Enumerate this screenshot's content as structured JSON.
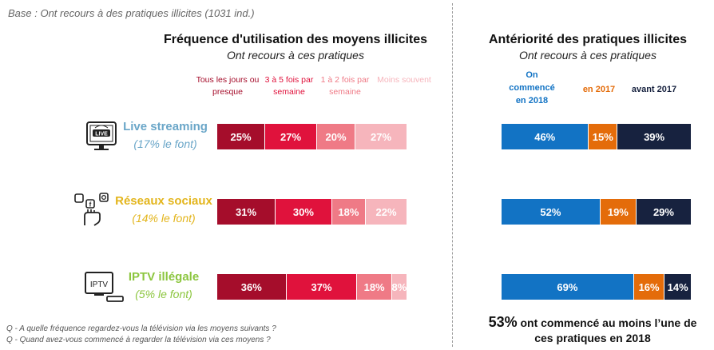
{
  "base_note": "Base : Ont recours à des pratiques illicites (1031 ind.)",
  "left_panel": {
    "title": "Fréquence d'utilisation des moyens illicites",
    "subtitle": "Ont recours à ces pratiques",
    "legend": [
      "Tous les jours ou presque",
      "3 à 5 fois par semaine",
      "1 à 2 fois par semaine",
      "Moins souvent"
    ]
  },
  "right_panel": {
    "title": "Antériorité des pratiques illicites",
    "subtitle": "Ont recours à ces pratiques",
    "legend": [
      "On commencé en 2018",
      "en 2017",
      "avant 2017"
    ]
  },
  "categories": [
    {
      "name": "Live streaming",
      "share": "(17% le font)",
      "icon": "live-tv-icon",
      "color": "#6aa6c8"
    },
    {
      "name": "Réseaux sociaux",
      "share": "(14% le font)",
      "icon": "social-media-hand-icon",
      "color": "#e3b51c"
    },
    {
      "name": "IPTV illégale",
      "share": "(5% le font)",
      "icon": "iptv-box-icon",
      "color": "#8cc63f",
      "icon_text": "IPTV"
    }
  ],
  "chart_data": [
    {
      "type": "bar",
      "orientation": "horizontal-stacked-100",
      "title": "Fréquence d'utilisation des moyens illicites",
      "subtitle": "Ont recours à ces pratiques",
      "categories": [
        "Live streaming",
        "Réseaux sociaux",
        "IPTV illégale"
      ],
      "series": [
        {
          "name": "Tous les jours ou presque",
          "values": [
            25,
            31,
            36
          ],
          "labels": [
            "25%",
            "31%",
            "36%"
          ],
          "color": "#a50d2b"
        },
        {
          "name": "3 à 5 fois par semaine",
          "values": [
            27,
            30,
            37
          ],
          "labels": [
            "27%",
            "30%",
            "37%"
          ],
          "color": "#e0123c"
        },
        {
          "name": "1 à 2 fois par semaine",
          "values": [
            20,
            18,
            18
          ],
          "labels": [
            "20%",
            "18%",
            "18%"
          ],
          "color": "#ef7a86"
        },
        {
          "name": "Moins souvent",
          "values": [
            27,
            22,
            8
          ],
          "labels": [
            "27%",
            "22%",
            "8%"
          ],
          "color": "#f6b5bc"
        }
      ]
    },
    {
      "type": "bar",
      "orientation": "horizontal-stacked-100",
      "title": "Antériorité des pratiques illicites",
      "subtitle": "Ont recours à ces pratiques",
      "categories": [
        "Live streaming",
        "Réseaux sociaux",
        "IPTV illégale"
      ],
      "series": [
        {
          "name": "On commencé en 2018",
          "values": [
            46,
            52,
            69
          ],
          "labels": [
            "46%",
            "52%",
            "69%"
          ],
          "color": "#1273c4"
        },
        {
          "name": "en 2017",
          "values": [
            15,
            19,
            16
          ],
          "labels": [
            "15%",
            "19%",
            "16%"
          ],
          "color": "#e46c0a"
        },
        {
          "name": "avant 2017",
          "values": [
            39,
            29,
            14
          ],
          "labels": [
            "39%",
            "29%",
            "14%"
          ],
          "color": "#17223f"
        }
      ]
    }
  ],
  "summary": {
    "value": "53%",
    "text": "ont commencé au moins l’une de ces pratiques en 2018"
  },
  "questions": [
    "Q - A quelle fréquence regardez-vous la télévision via les moyens suivants ?",
    "Q - Quand avez-vous commencé à regarder la télévision via ces moyens ?"
  ]
}
